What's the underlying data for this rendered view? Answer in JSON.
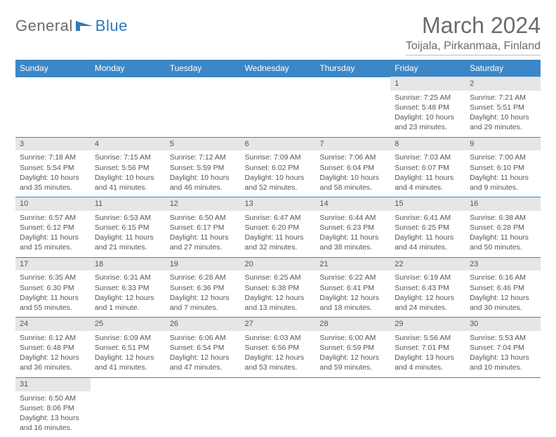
{
  "logo": {
    "text1": "General",
    "text2": "Blue"
  },
  "title": "March 2024",
  "location": "Toijala, Pirkanmaa, Finland",
  "colors": {
    "header_bg": "#3b87c8",
    "header_text": "#ffffff",
    "daynum_bg": "#e6e6e6",
    "row_divider": "#3b87c8",
    "body_text": "#555555",
    "title_text": "#6b6b6b"
  },
  "weekdays": [
    "Sunday",
    "Monday",
    "Tuesday",
    "Wednesday",
    "Thursday",
    "Friday",
    "Saturday"
  ],
  "weeks": [
    [
      null,
      null,
      null,
      null,
      null,
      {
        "n": "1",
        "sunrise": "7:25 AM",
        "sunset": "5:48 PM",
        "day_h": "10",
        "day_m": "23"
      },
      {
        "n": "2",
        "sunrise": "7:21 AM",
        "sunset": "5:51 PM",
        "day_h": "10",
        "day_m": "29"
      }
    ],
    [
      {
        "n": "3",
        "sunrise": "7:18 AM",
        "sunset": "5:54 PM",
        "day_h": "10",
        "day_m": "35"
      },
      {
        "n": "4",
        "sunrise": "7:15 AM",
        "sunset": "5:56 PM",
        "day_h": "10",
        "day_m": "41"
      },
      {
        "n": "5",
        "sunrise": "7:12 AM",
        "sunset": "5:59 PM",
        "day_h": "10",
        "day_m": "46"
      },
      {
        "n": "6",
        "sunrise": "7:09 AM",
        "sunset": "6:02 PM",
        "day_h": "10",
        "day_m": "52"
      },
      {
        "n": "7",
        "sunrise": "7:06 AM",
        "sunset": "6:04 PM",
        "day_h": "10",
        "day_m": "58"
      },
      {
        "n": "8",
        "sunrise": "7:03 AM",
        "sunset": "6:07 PM",
        "day_h": "11",
        "day_m": "4"
      },
      {
        "n": "9",
        "sunrise": "7:00 AM",
        "sunset": "6:10 PM",
        "day_h": "11",
        "day_m": "9"
      }
    ],
    [
      {
        "n": "10",
        "sunrise": "6:57 AM",
        "sunset": "6:12 PM",
        "day_h": "11",
        "day_m": "15"
      },
      {
        "n": "11",
        "sunrise": "6:53 AM",
        "sunset": "6:15 PM",
        "day_h": "11",
        "day_m": "21"
      },
      {
        "n": "12",
        "sunrise": "6:50 AM",
        "sunset": "6:17 PM",
        "day_h": "11",
        "day_m": "27"
      },
      {
        "n": "13",
        "sunrise": "6:47 AM",
        "sunset": "6:20 PM",
        "day_h": "11",
        "day_m": "32"
      },
      {
        "n": "14",
        "sunrise": "6:44 AM",
        "sunset": "6:23 PM",
        "day_h": "11",
        "day_m": "38"
      },
      {
        "n": "15",
        "sunrise": "6:41 AM",
        "sunset": "6:25 PM",
        "day_h": "11",
        "day_m": "44"
      },
      {
        "n": "16",
        "sunrise": "6:38 AM",
        "sunset": "6:28 PM",
        "day_h": "11",
        "day_m": "50"
      }
    ],
    [
      {
        "n": "17",
        "sunrise": "6:35 AM",
        "sunset": "6:30 PM",
        "day_h": "11",
        "day_m": "55"
      },
      {
        "n": "18",
        "sunrise": "6:31 AM",
        "sunset": "6:33 PM",
        "day_h": "12",
        "day_m": "1"
      },
      {
        "n": "19",
        "sunrise": "6:28 AM",
        "sunset": "6:36 PM",
        "day_h": "12",
        "day_m": "7"
      },
      {
        "n": "20",
        "sunrise": "6:25 AM",
        "sunset": "6:38 PM",
        "day_h": "12",
        "day_m": "13"
      },
      {
        "n": "21",
        "sunrise": "6:22 AM",
        "sunset": "6:41 PM",
        "day_h": "12",
        "day_m": "18"
      },
      {
        "n": "22",
        "sunrise": "6:19 AM",
        "sunset": "6:43 PM",
        "day_h": "12",
        "day_m": "24"
      },
      {
        "n": "23",
        "sunrise": "6:16 AM",
        "sunset": "6:46 PM",
        "day_h": "12",
        "day_m": "30"
      }
    ],
    [
      {
        "n": "24",
        "sunrise": "6:12 AM",
        "sunset": "6:48 PM",
        "day_h": "12",
        "day_m": "36"
      },
      {
        "n": "25",
        "sunrise": "6:09 AM",
        "sunset": "6:51 PM",
        "day_h": "12",
        "day_m": "41"
      },
      {
        "n": "26",
        "sunrise": "6:06 AM",
        "sunset": "6:54 PM",
        "day_h": "12",
        "day_m": "47"
      },
      {
        "n": "27",
        "sunrise": "6:03 AM",
        "sunset": "6:56 PM",
        "day_h": "12",
        "day_m": "53"
      },
      {
        "n": "28",
        "sunrise": "6:00 AM",
        "sunset": "6:59 PM",
        "day_h": "12",
        "day_m": "59"
      },
      {
        "n": "29",
        "sunrise": "5:56 AM",
        "sunset": "7:01 PM",
        "day_h": "13",
        "day_m": "4"
      },
      {
        "n": "30",
        "sunrise": "5:53 AM",
        "sunset": "7:04 PM",
        "day_h": "13",
        "day_m": "10"
      }
    ],
    [
      {
        "n": "31",
        "sunrise": "6:50 AM",
        "sunset": "8:06 PM",
        "day_h": "13",
        "day_m": "16"
      },
      null,
      null,
      null,
      null,
      null,
      null
    ]
  ],
  "labels": {
    "sunrise": "Sunrise:",
    "sunset": "Sunset:",
    "daylight": "Daylight:",
    "hours": "hours",
    "and": "and",
    "minute": "minute.",
    "minutes": "minutes."
  }
}
